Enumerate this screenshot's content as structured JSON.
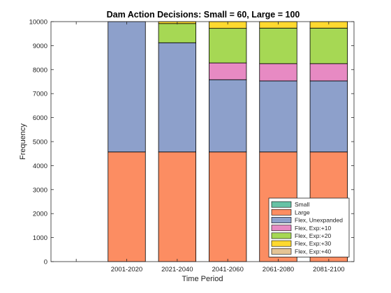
{
  "chart_data": {
    "type": "bar",
    "stacked": true,
    "title": "Dam Action Decisions: Small = 60, Large = 100",
    "xlabel": "Time Period",
    "ylabel": "Frequency",
    "ylim": [
      0,
      10000
    ],
    "yticks": [
      0,
      1000,
      2000,
      3000,
      4000,
      5000,
      6000,
      7000,
      8000,
      9000,
      10000
    ],
    "categories": [
      "",
      "2001-2020",
      "2021-2040",
      "2041-2060",
      "2061-2080",
      "2081-2100"
    ],
    "series": [
      {
        "name": "Small",
        "color": "#66c2a5",
        "values": [
          0,
          0,
          0,
          0,
          0,
          0
        ]
      },
      {
        "name": "Large",
        "color": "#fc8d62",
        "values": [
          0,
          4570,
          4570,
          4570,
          4570,
          4570
        ]
      },
      {
        "name": "Flex, Unexpanded",
        "color": "#8da0cb",
        "values": [
          0,
          5430,
          4550,
          3010,
          2960,
          2960
        ]
      },
      {
        "name": "Flex, Exp:+10",
        "color": "#e78ac3",
        "values": [
          0,
          0,
          0,
          700,
          720,
          720
        ]
      },
      {
        "name": "Flex, Exp:+20",
        "color": "#a6d854",
        "values": [
          0,
          0,
          800,
          1440,
          1480,
          1480
        ]
      },
      {
        "name": "Flex, Exp:+30",
        "color": "#ffd92f",
        "values": [
          0,
          0,
          80,
          280,
          270,
          270
        ]
      },
      {
        "name": "Flex, Exp:+40",
        "color": "#e5c494",
        "values": [
          0,
          0,
          0,
          0,
          0,
          0
        ]
      }
    ],
    "legend_position": "bottom-right",
    "grid": false
  }
}
